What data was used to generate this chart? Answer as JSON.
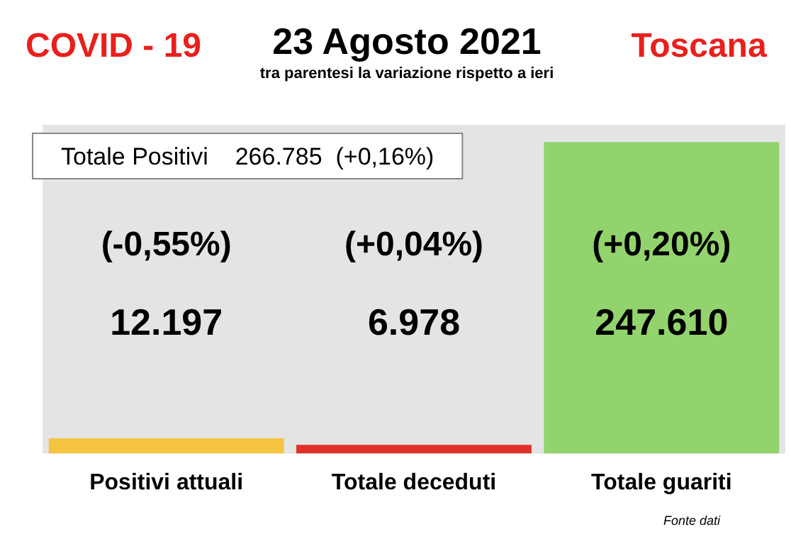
{
  "chart_data": {
    "type": "bar",
    "title": "23 Agosto 2021",
    "subtitle": "tra parentesi la variazione rispetto a ieri",
    "categories": [
      "Positivi attuali",
      "Totale deceduti",
      "Totale guariti"
    ],
    "values": [
      12197,
      6978,
      247610
    ],
    "colors": [
      "#f5c542",
      "#e0302a",
      "#92d36e"
    ],
    "value_labels": [
      "12.197",
      "6.978",
      "247.610"
    ],
    "annotations": [
      "COVID - 19",
      "Toscana",
      "Totale Positivi    266.785  (+0,16%)",
      "Fonte dati",
      "(-0,55%)",
      "(+0,04%)",
      "(+0,20%)"
    ],
    "grid": false,
    "legend": false
  }
}
